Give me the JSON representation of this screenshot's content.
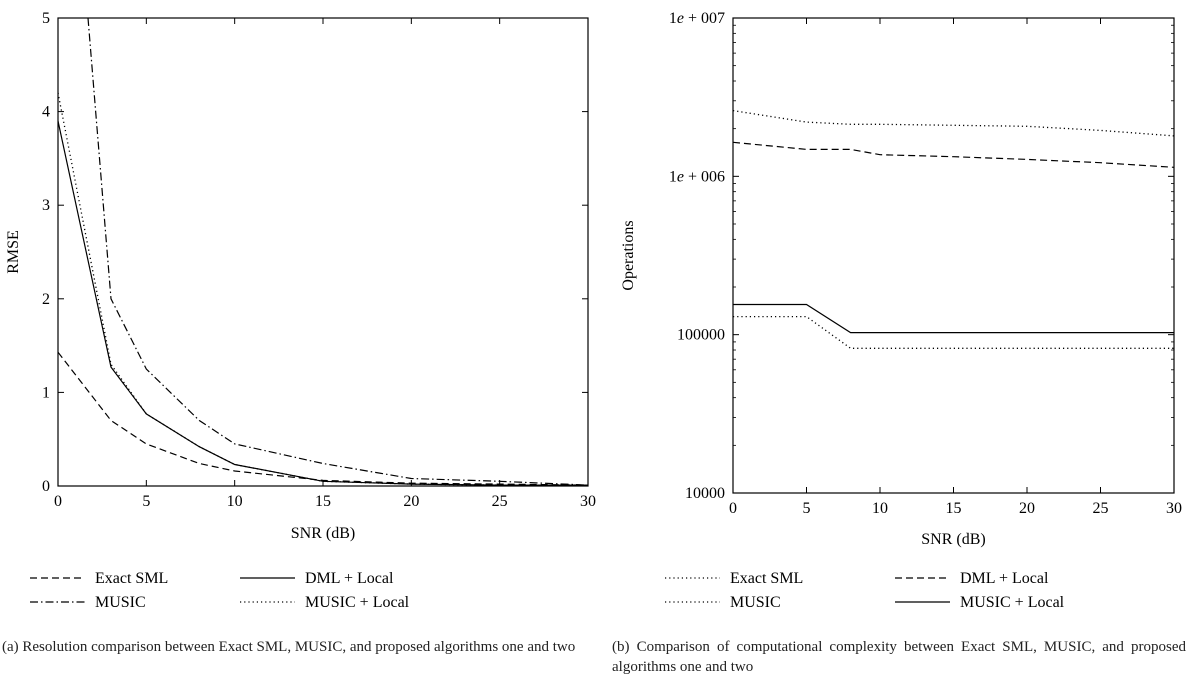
{
  "chart_data": [
    {
      "type": "line",
      "panel": "a",
      "xlabel": "SNR (dB)",
      "ylabel": "RMSE",
      "xlim": [
        0,
        30
      ],
      "ylim": [
        0,
        5
      ],
      "xticks": [
        0,
        5,
        10,
        15,
        20,
        25,
        30
      ],
      "yticks": [
        0,
        1,
        2,
        3,
        4,
        5
      ],
      "legend_position": "below-plot",
      "series": [
        {
          "name": "Exact SML",
          "style": "dashed",
          "x": [
            0,
            3,
            5,
            8,
            10,
            15,
            20,
            25,
            30
          ],
          "y": [
            1.43,
            0.7,
            0.45,
            0.24,
            0.16,
            0.06,
            0.03,
            0.02,
            0.01
          ]
        },
        {
          "name": "MUSIC",
          "style": "dashdot",
          "x": [
            1.7,
            3,
            5,
            8,
            10,
            15,
            20,
            25,
            30
          ],
          "y": [
            5.0,
            2.0,
            1.25,
            0.7,
            0.45,
            0.24,
            0.08,
            0.05,
            0.01
          ]
        },
        {
          "name": "DML + Local",
          "style": "solid",
          "x": [
            0,
            3,
            5,
            8,
            10,
            15,
            20,
            25,
            30
          ],
          "y": [
            3.9,
            1.27,
            0.77,
            0.42,
            0.23,
            0.05,
            0.02,
            0.01,
            0.01
          ]
        },
        {
          "name": "MUSIC + Local",
          "style": "dotted",
          "x": [
            0,
            3,
            5,
            8,
            10,
            15,
            20,
            25,
            30
          ],
          "y": [
            4.2,
            1.3,
            0.77,
            0.42,
            0.23,
            0.05,
            0.02,
            0.01,
            0.01
          ]
        }
      ],
      "legend_entries": [
        "Exact SML",
        "DML + Local",
        "MUSIC",
        "MUSIC + Local"
      ],
      "caption": "(a)  Resolution  comparison  between  Exact  SML,  MUSIC,  and  proposed algorithms one and two"
    },
    {
      "type": "line",
      "panel": "b",
      "xlabel": "SNR (dB)",
      "ylabel": "Operations",
      "xlim": [
        0,
        30
      ],
      "ylim": [
        10000,
        10000000
      ],
      "yscale": "log",
      "xticks": [
        0,
        5,
        10,
        15,
        20,
        25,
        30
      ],
      "yticks": [
        10000,
        100000,
        1000000,
        10000000
      ],
      "ytick_labels": [
        "10000",
        "100000",
        "1e + 006",
        "1e + 007"
      ],
      "legend_position": "below-plot",
      "series": [
        {
          "name": "Exact SML",
          "style": "dotted",
          "x": [
            0,
            5,
            8,
            10,
            15,
            20,
            25,
            30
          ],
          "y": [
            2600000,
            2200000,
            2130000,
            2130000,
            2100000,
            2070000,
            1950000,
            1800000
          ]
        },
        {
          "name": "DML + Local",
          "style": "dashed",
          "x": [
            0,
            5,
            8,
            10,
            15,
            20,
            25,
            30
          ],
          "y": [
            1640000,
            1480000,
            1480000,
            1370000,
            1330000,
            1280000,
            1220000,
            1140000
          ]
        },
        {
          "name": "MUSIC",
          "style": "dotted",
          "x": [
            0,
            5,
            8,
            10,
            15,
            20,
            25,
            30
          ],
          "y": [
            130000,
            130000,
            82000,
            82000,
            82000,
            82000,
            82000,
            82000
          ]
        },
        {
          "name": "MUSIC + Local",
          "style": "solid",
          "x": [
            0,
            5,
            8,
            10,
            15,
            20,
            25,
            30
          ],
          "y": [
            155000,
            155000,
            103000,
            103000,
            103000,
            103000,
            103000,
            103000
          ]
        }
      ],
      "legend_entries": [
        "Exact SML",
        "DML + Local",
        "MUSIC",
        "MUSIC + Local"
      ],
      "caption": "(b)  Comparison of computational complexity between Exact SML, MUSIC, and proposed algorithms one and two"
    }
  ]
}
